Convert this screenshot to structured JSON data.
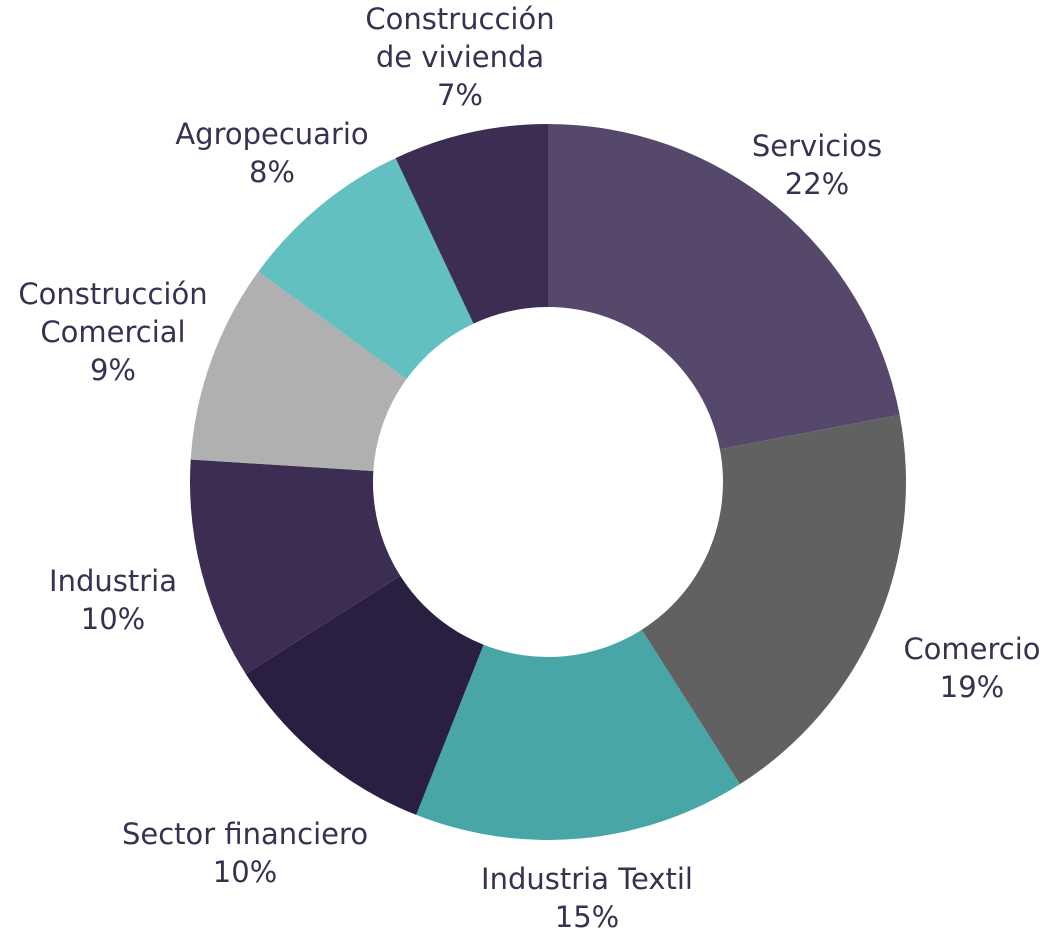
{
  "chart_data": {
    "type": "donut",
    "categories": [
      "Servicios",
      "Comercio",
      "Industria Textil",
      "Sector financiero",
      "Industria",
      "Construcción Comercial",
      "Agropecuario",
      "Construcción de vivienda"
    ],
    "values": [
      22,
      19,
      15,
      10,
      10,
      9,
      8,
      7
    ],
    "value_labels": [
      "22%",
      "19%",
      "15%",
      "10%",
      "10%",
      "9%",
      "8%",
      "7%"
    ],
    "colors": [
      "#56486b",
      "#616161",
      "#48a6a6",
      "#2a1f40",
      "#3c2e52",
      "#b0b0b0",
      "#63c0c0",
      "#3c2e52"
    ]
  }
}
